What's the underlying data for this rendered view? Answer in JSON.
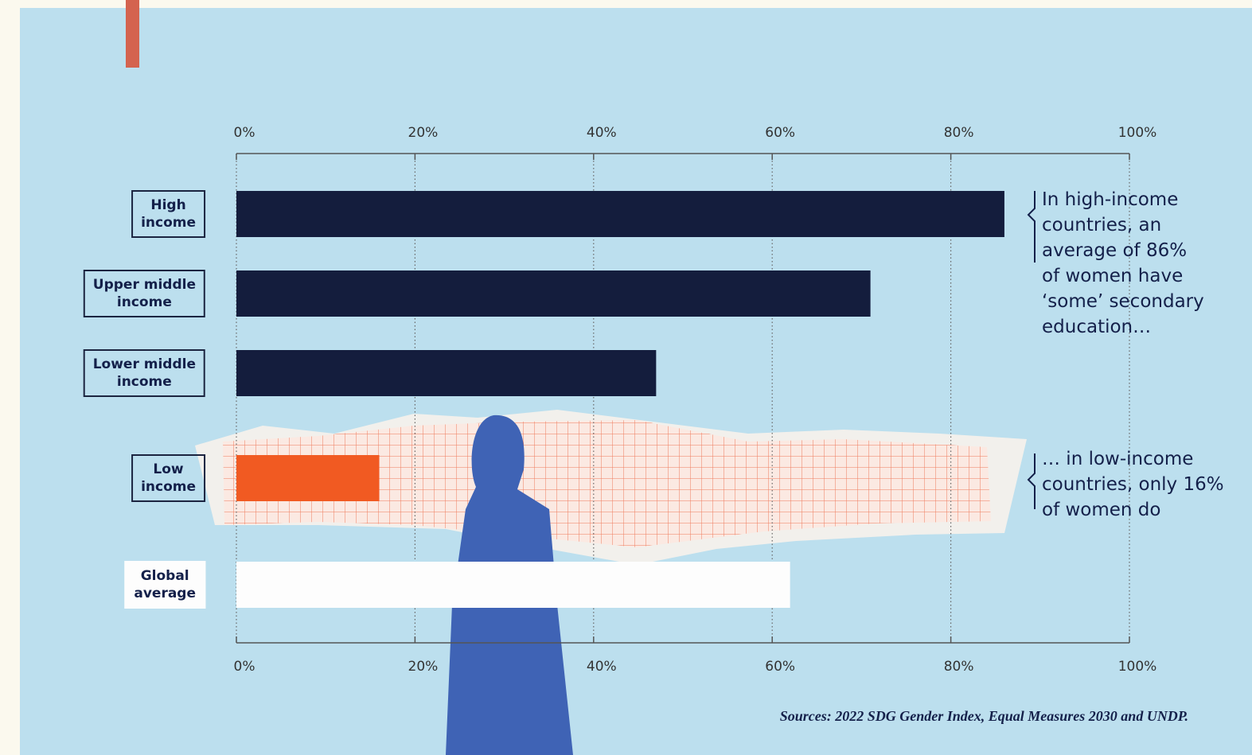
{
  "chart_data": {
    "type": "hbar",
    "categories": [
      "High\nincome",
      "Upper middle\nincome",
      "Lower middle\nincome",
      "Low\nincome",
      "Global\naverage"
    ],
    "values": [
      86,
      71,
      47,
      16,
      62
    ],
    "colors": [
      "#141d3d",
      "#141d3d",
      "#141d3d",
      "#f15a22",
      "#fdfdfd"
    ],
    "xlim": [
      0,
      100
    ],
    "xticks": [
      {
        "value": 0,
        "label": "0%"
      },
      {
        "value": 20,
        "label": "20%"
      },
      {
        "value": 40,
        "label": "40%"
      },
      {
        "value": 60,
        "label": "60%"
      },
      {
        "value": 80,
        "label": "80%"
      },
      {
        "value": 100,
        "label": "100%"
      }
    ],
    "grid": true,
    "annotations": [
      "In high-income\ncountries, an\naverage of 86%\nof women have\n‘some’ secondary\neducation…",
      "… in low-income\ncountries, only 16%\nof women do"
    ],
    "source": "Sources: 2022 SDG Gender Index, Equal Measures 2030 and UNDP."
  }
}
